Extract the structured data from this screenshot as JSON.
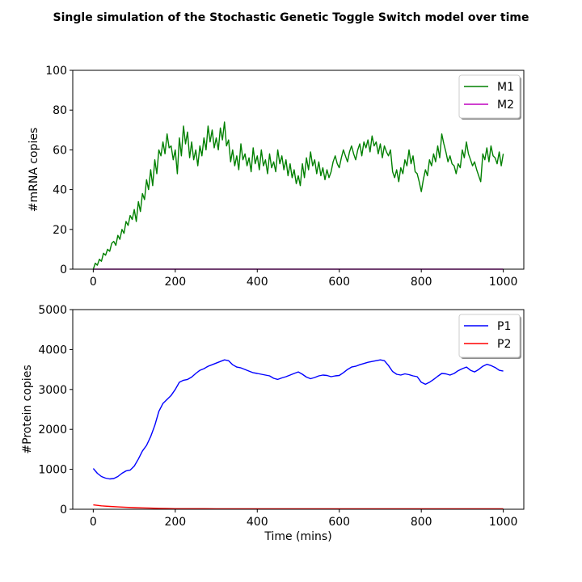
{
  "figure": {
    "title": "Single simulation of the Stochastic Genetic Toggle Switch model over time"
  },
  "chart_data": [
    {
      "type": "line",
      "xlabel": "",
      "ylabel": "#mRNA copies",
      "xlim": [
        -50,
        1050
      ],
      "ylim": [
        0,
        100
      ],
      "xticks": [
        0,
        200,
        400,
        600,
        800,
        1000
      ],
      "yticks": [
        0,
        20,
        40,
        60,
        80,
        100
      ],
      "xtick_labels": [
        "0",
        "200",
        "400",
        "600",
        "800",
        "1000"
      ],
      "ytick_labels": [
        "0",
        "20",
        "40",
        "60",
        "80",
        "100"
      ],
      "legend": "top-right",
      "grid": false,
      "series": [
        {
          "name": "M1",
          "color": "#008000",
          "x": [
            0,
            5,
            10,
            15,
            20,
            25,
            30,
            35,
            40,
            45,
            50,
            55,
            60,
            65,
            70,
            75,
            80,
            85,
            90,
            95,
            100,
            105,
            110,
            115,
            120,
            125,
            130,
            135,
            140,
            145,
            150,
            155,
            160,
            165,
            170,
            175,
            180,
            185,
            190,
            195,
            200,
            205,
            210,
            215,
            220,
            225,
            230,
            235,
            240,
            245,
            250,
            255,
            260,
            265,
            270,
            275,
            280,
            285,
            290,
            295,
            300,
            305,
            310,
            315,
            320,
            325,
            330,
            335,
            340,
            345,
            350,
            355,
            360,
            365,
            370,
            375,
            380,
            385,
            390,
            395,
            400,
            405,
            410,
            415,
            420,
            425,
            430,
            435,
            440,
            445,
            450,
            455,
            460,
            465,
            470,
            475,
            480,
            485,
            490,
            495,
            500,
            505,
            510,
            515,
            520,
            525,
            530,
            535,
            540,
            545,
            550,
            555,
            560,
            565,
            570,
            575,
            580,
            585,
            590,
            595,
            600,
            605,
            610,
            615,
            620,
            625,
            630,
            635,
            640,
            645,
            650,
            655,
            660,
            665,
            670,
            675,
            680,
            685,
            690,
            695,
            700,
            705,
            710,
            715,
            720,
            725,
            730,
            735,
            740,
            745,
            750,
            755,
            760,
            765,
            770,
            775,
            780,
            785,
            790,
            795,
            800,
            805,
            810,
            815,
            820,
            825,
            830,
            835,
            840,
            845,
            850,
            855,
            860,
            865,
            870,
            875,
            880,
            885,
            890,
            895,
            900,
            905,
            910,
            915,
            920,
            925,
            930,
            935,
            940,
            945,
            950,
            955,
            960,
            965,
            970,
            975,
            980,
            985,
            990,
            995,
            1000
          ],
          "y": [
            0,
            3,
            2,
            5,
            4,
            8,
            7,
            10,
            9,
            13,
            14,
            12,
            17,
            15,
            20,
            18,
            24,
            22,
            27,
            25,
            30,
            24,
            34,
            29,
            38,
            35,
            45,
            40,
            50,
            42,
            55,
            48,
            60,
            57,
            64,
            58,
            68,
            61,
            62,
            55,
            60,
            48,
            66,
            57,
            72,
            63,
            69,
            56,
            64,
            55,
            60,
            52,
            62,
            57,
            66,
            60,
            72,
            64,
            70,
            61,
            66,
            60,
            71,
            65,
            74,
            62,
            65,
            54,
            60,
            52,
            57,
            50,
            63,
            55,
            58,
            52,
            56,
            49,
            61,
            53,
            57,
            50,
            60,
            52,
            55,
            48,
            58,
            51,
            54,
            49,
            60,
            53,
            57,
            50,
            55,
            47,
            53,
            46,
            50,
            43,
            47,
            42,
            53,
            46,
            56,
            50,
            59,
            52,
            55,
            48,
            54,
            47,
            51,
            45,
            50,
            46,
            49,
            54,
            57,
            53,
            51,
            56,
            60,
            57,
            54,
            59,
            62,
            58,
            55,
            60,
            63,
            57,
            64,
            61,
            65,
            59,
            67,
            62,
            64,
            58,
            63,
            56,
            62,
            59,
            57,
            60,
            49,
            46,
            50,
            44,
            51,
            48,
            55,
            52,
            60,
            53,
            57,
            49,
            48,
            44,
            39,
            45,
            50,
            47,
            55,
            52,
            58,
            54,
            62,
            56,
            68,
            63,
            59,
            54,
            57,
            53,
            52,
            48,
            53,
            51,
            60,
            56,
            64,
            58,
            55,
            52,
            54,
            50,
            47,
            44,
            58,
            55,
            61,
            54,
            62,
            57,
            56,
            53,
            59,
            52,
            58
          ]
        },
        {
          "name": "M2",
          "color": "#bf00bf",
          "x": [
            0,
            1000
          ],
          "y": [
            0,
            0
          ]
        }
      ]
    },
    {
      "type": "line",
      "xlabel": "Time (mins)",
      "ylabel": "#Protein copies",
      "xlim": [
        -50,
        1050
      ],
      "ylim": [
        0,
        5000
      ],
      "xticks": [
        0,
        200,
        400,
        600,
        800,
        1000
      ],
      "yticks": [
        0,
        1000,
        2000,
        3000,
        4000,
        5000
      ],
      "xtick_labels": [
        "0",
        "200",
        "400",
        "600",
        "800",
        "1000"
      ],
      "ytick_labels": [
        "0",
        "1000",
        "2000",
        "3000",
        "4000",
        "5000"
      ],
      "legend": "top-right",
      "grid": false,
      "series": [
        {
          "name": "P1",
          "color": "#0000ff",
          "x": [
            0,
            10,
            20,
            30,
            40,
            50,
            60,
            70,
            80,
            90,
            100,
            110,
            120,
            130,
            140,
            150,
            160,
            170,
            180,
            190,
            200,
            210,
            220,
            230,
            240,
            250,
            260,
            270,
            280,
            290,
            300,
            310,
            320,
            330,
            340,
            350,
            360,
            370,
            380,
            390,
            400,
            410,
            420,
            430,
            440,
            450,
            460,
            470,
            480,
            490,
            500,
            510,
            520,
            530,
            540,
            550,
            560,
            570,
            580,
            590,
            600,
            610,
            620,
            630,
            640,
            650,
            660,
            670,
            680,
            690,
            700,
            710,
            720,
            730,
            740,
            750,
            760,
            770,
            780,
            790,
            800,
            810,
            820,
            830,
            840,
            850,
            860,
            870,
            880,
            890,
            900,
            910,
            920,
            930,
            940,
            950,
            960,
            970,
            980,
            990,
            1000
          ],
          "y": [
            1020,
            900,
            820,
            780,
            760,
            770,
            820,
            900,
            960,
            980,
            1080,
            1260,
            1460,
            1600,
            1820,
            2100,
            2450,
            2650,
            2750,
            2850,
            3000,
            3180,
            3230,
            3250,
            3310,
            3400,
            3480,
            3520,
            3580,
            3620,
            3660,
            3700,
            3740,
            3720,
            3620,
            3560,
            3540,
            3500,
            3460,
            3420,
            3400,
            3380,
            3360,
            3340,
            3280,
            3250,
            3290,
            3320,
            3360,
            3400,
            3440,
            3380,
            3310,
            3270,
            3300,
            3340,
            3360,
            3350,
            3320,
            3340,
            3350,
            3420,
            3500,
            3560,
            3580,
            3620,
            3650,
            3680,
            3700,
            3720,
            3740,
            3720,
            3600,
            3450,
            3380,
            3360,
            3390,
            3370,
            3340,
            3320,
            3180,
            3130,
            3180,
            3250,
            3330,
            3400,
            3390,
            3360,
            3400,
            3470,
            3520,
            3560,
            3480,
            3440,
            3500,
            3580,
            3630,
            3600,
            3550,
            3480,
            3460
          ]
        },
        {
          "name": "P2",
          "color": "#ff0000",
          "x": [
            0,
            20,
            40,
            60,
            80,
            100,
            120,
            140,
            160,
            180,
            200,
            300,
            400,
            500,
            600,
            700,
            800,
            900,
            1000
          ],
          "y": [
            110,
            85,
            70,
            58,
            48,
            40,
            34,
            28,
            22,
            18,
            15,
            12,
            10,
            10,
            10,
            10,
            10,
            10,
            10
          ]
        }
      ]
    }
  ]
}
